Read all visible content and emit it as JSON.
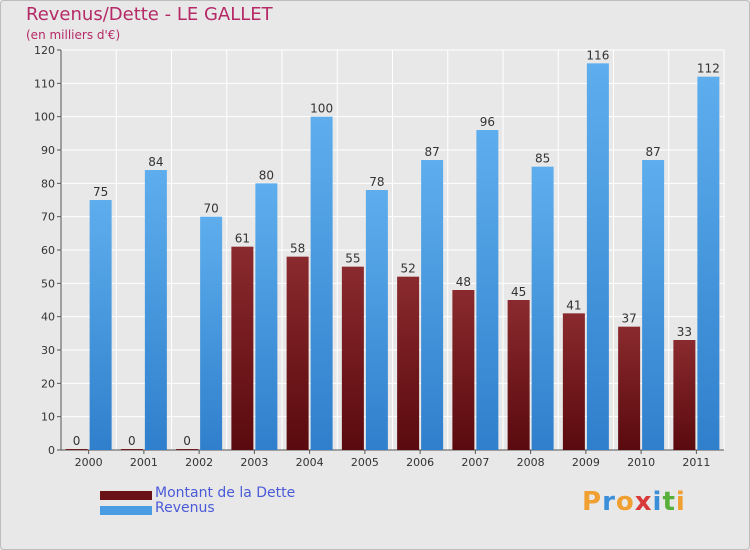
{
  "chart_data": {
    "type": "bar",
    "title": "Revenus/Dette - LE GALLET",
    "subtitle": "(en milliers d'€)",
    "categories": [
      "2000",
      "2001",
      "2002",
      "2003",
      "2004",
      "2005",
      "2006",
      "2007",
      "2008",
      "2009",
      "2010",
      "2011"
    ],
    "series": [
      {
        "name": "Montant de la Dette",
        "color": "#7a1a1e",
        "values": [
          0,
          0,
          0,
          61,
          58,
          55,
          52,
          48,
          45,
          41,
          37,
          33
        ]
      },
      {
        "name": "Revenus",
        "color": "#4a9de3",
        "values": [
          75,
          84,
          70,
          80,
          100,
          78,
          87,
          96,
          85,
          116,
          87,
          112
        ]
      }
    ],
    "ylim": [
      0,
      120
    ],
    "yticks": [
      0,
      10,
      20,
      30,
      40,
      50,
      60,
      70,
      80,
      90,
      100,
      110,
      120
    ],
    "grid": true,
    "legend": "bottom-left"
  },
  "logo": {
    "letters": [
      "P",
      "r",
      "o",
      "x",
      "i",
      "t",
      "i"
    ],
    "colors": [
      "#f0a030",
      "#3a8fd8",
      "#f0a030",
      "#d83a3a",
      "#3a8fd8",
      "#58b03a",
      "#f0a030"
    ]
  }
}
